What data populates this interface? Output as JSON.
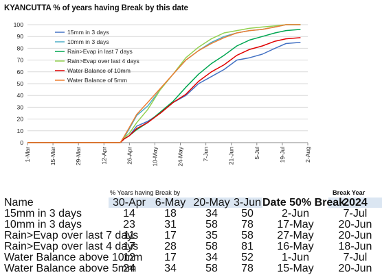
{
  "title": "KYANCUTTA % of years having Break by this date",
  "chart_data": {
    "type": "line",
    "title": "KYANCUTTA % of years having Break by this date",
    "x_ticks": [
      "1-Mar",
      "15-Mar",
      "29-Mar",
      "12-Apr",
      "26-Apr",
      "10-May",
      "24-May",
      "7-Jun",
      "21-Jun",
      "5-Jul",
      "19-Jul",
      "2-Aug"
    ],
    "x_tick_days": [
      0,
      14,
      28,
      42,
      56,
      70,
      84,
      98,
      112,
      126,
      140,
      154
    ],
    "y_ticks": [
      0,
      10,
      20,
      30,
      40,
      50,
      60,
      70,
      80,
      90,
      100
    ],
    "ylim": [
      0,
      100
    ],
    "xlim": [
      "1-Mar",
      "2-Aug"
    ],
    "grid": "horizontal",
    "legend_position": "top-left",
    "series": [
      {
        "name": "15mm in 3 days",
        "color": "#4472c4",
        "points": [
          [
            "1-Mar",
            0
          ],
          [
            "21-Apr",
            0
          ],
          [
            "23-Apr",
            3
          ],
          [
            "26-Apr",
            6
          ],
          [
            "30-Apr",
            14
          ],
          [
            "6-May",
            18
          ],
          [
            "13-May",
            25
          ],
          [
            "20-May",
            34
          ],
          [
            "27-May",
            40
          ],
          [
            "3-Jun",
            50
          ],
          [
            "10-Jun",
            56
          ],
          [
            "17-Jun",
            62
          ],
          [
            "24-Jun",
            70
          ],
          [
            "1-Jul",
            72
          ],
          [
            "8-Jul",
            75
          ],
          [
            "15-Jul",
            80
          ],
          [
            "21-Jul",
            84
          ],
          [
            "29-Jul",
            85
          ]
        ]
      },
      {
        "name": "10mm in 3 days",
        "color": "#4bacc6",
        "points": [
          [
            "1-Mar",
            0
          ],
          [
            "21-Apr",
            0
          ],
          [
            "23-Apr",
            4
          ],
          [
            "26-Apr",
            12
          ],
          [
            "30-Apr",
            23
          ],
          [
            "6-May",
            31
          ],
          [
            "13-May",
            45
          ],
          [
            "20-May",
            58
          ],
          [
            "27-May",
            70
          ],
          [
            "3-Jun",
            78
          ],
          [
            "10-Jun",
            85
          ],
          [
            "17-Jun",
            90
          ],
          [
            "24-Jun",
            93
          ],
          [
            "1-Jul",
            95
          ],
          [
            "8-Jul",
            96
          ],
          [
            "15-Jul",
            98
          ],
          [
            "21-Jul",
            100
          ],
          [
            "29-Jul",
            100
          ]
        ]
      },
      {
        "name": "Rain>Evap in last 7 days",
        "color": "#00a651",
        "points": [
          [
            "1-Mar",
            0
          ],
          [
            "21-Apr",
            0
          ],
          [
            "23-Apr",
            3
          ],
          [
            "26-Apr",
            6
          ],
          [
            "30-Apr",
            11
          ],
          [
            "6-May",
            17
          ],
          [
            "13-May",
            26
          ],
          [
            "20-May",
            35
          ],
          [
            "27-May",
            47
          ],
          [
            "3-Jun",
            58
          ],
          [
            "10-Jun",
            67
          ],
          [
            "17-Jun",
            74
          ],
          [
            "24-Jun",
            82
          ],
          [
            "1-Jul",
            87
          ],
          [
            "8-Jul",
            90
          ],
          [
            "15-Jul",
            93
          ],
          [
            "21-Jul",
            95
          ],
          [
            "29-Jul",
            96
          ]
        ]
      },
      {
        "name": "Rain>Evap over last 4 days",
        "color": "#92d050",
        "points": [
          [
            "1-Mar",
            0
          ],
          [
            "21-Apr",
            0
          ],
          [
            "23-Apr",
            4
          ],
          [
            "26-Apr",
            8
          ],
          [
            "30-Apr",
            17
          ],
          [
            "6-May",
            28
          ],
          [
            "13-May",
            45
          ],
          [
            "20-May",
            58
          ],
          [
            "27-May",
            72
          ],
          [
            "3-Jun",
            81
          ],
          [
            "10-Jun",
            88
          ],
          [
            "17-Jun",
            93
          ],
          [
            "24-Jun",
            95
          ],
          [
            "1-Jul",
            97
          ],
          [
            "8-Jul",
            98
          ],
          [
            "15-Jul",
            99
          ],
          [
            "21-Jul",
            100
          ],
          [
            "29-Jul",
            100
          ]
        ]
      },
      {
        "name": "Water Balance of 10mm",
        "color": "#e00000",
        "points": [
          [
            "1-Mar",
            0
          ],
          [
            "21-Apr",
            0
          ],
          [
            "23-Apr",
            3
          ],
          [
            "26-Apr",
            6
          ],
          [
            "30-Apr",
            12
          ],
          [
            "6-May",
            17
          ],
          [
            "13-May",
            25
          ],
          [
            "20-May",
            34
          ],
          [
            "27-May",
            41
          ],
          [
            "3-Jun",
            52
          ],
          [
            "10-Jun",
            60
          ],
          [
            "17-Jun",
            66
          ],
          [
            "24-Jun",
            74
          ],
          [
            "1-Jul",
            79
          ],
          [
            "8-Jul",
            82
          ],
          [
            "15-Jul",
            86
          ],
          [
            "21-Jul",
            88
          ],
          [
            "29-Jul",
            89
          ]
        ]
      },
      {
        "name": "Water Balance of 5mm",
        "color": "#ed7d31",
        "points": [
          [
            "1-Mar",
            0
          ],
          [
            "21-Apr",
            0
          ],
          [
            "23-Apr",
            5
          ],
          [
            "26-Apr",
            13
          ],
          [
            "30-Apr",
            24
          ],
          [
            "6-May",
            34
          ],
          [
            "13-May",
            46
          ],
          [
            "20-May",
            58
          ],
          [
            "27-May",
            70
          ],
          [
            "3-Jun",
            78
          ],
          [
            "10-Jun",
            84
          ],
          [
            "17-Jun",
            89
          ],
          [
            "24-Jun",
            93
          ],
          [
            "1-Jul",
            95
          ],
          [
            "8-Jul",
            96
          ],
          [
            "15-Jul",
            98
          ],
          [
            "21-Jul",
            100
          ],
          [
            "29-Jul",
            100
          ]
        ]
      }
    ]
  },
  "table": {
    "group_header": "% Years having Break by",
    "break_year_header": "Break Year",
    "name_header": "Name",
    "date_headers": [
      "30-Apr",
      "6-May",
      "20-May",
      "3-Jun"
    ],
    "date50_header": "Date 50% Break",
    "year": "2024",
    "rows": [
      {
        "name": "15mm in 3 days",
        "values": [
          "14",
          "18",
          "34",
          "50"
        ],
        "date50": "2-Jun",
        "break": "7-Jul"
      },
      {
        "name": "10mm in 3 days",
        "values": [
          "23",
          "31",
          "58",
          "78"
        ],
        "date50": "17-May",
        "break": "20-Jun"
      },
      {
        "name": "Rain>Evap over last 7 days",
        "values": [
          "11",
          "17",
          "35",
          "58"
        ],
        "date50": "27-May",
        "break": "20-Jun"
      },
      {
        "name": "Rain>Evap over last 4 days",
        "values": [
          "17",
          "28",
          "58",
          "81"
        ],
        "date50": "16-May",
        "break": "18-Jun"
      },
      {
        "name": "Water Balance above 10mm",
        "values": [
          "12",
          "17",
          "34",
          "52"
        ],
        "date50": "1-Jun",
        "break": "7-Jul"
      },
      {
        "name": "Water Balance above 5mm",
        "values": [
          "24",
          "34",
          "58",
          "78"
        ],
        "date50": "15-May",
        "break": "20-Jun"
      }
    ]
  }
}
